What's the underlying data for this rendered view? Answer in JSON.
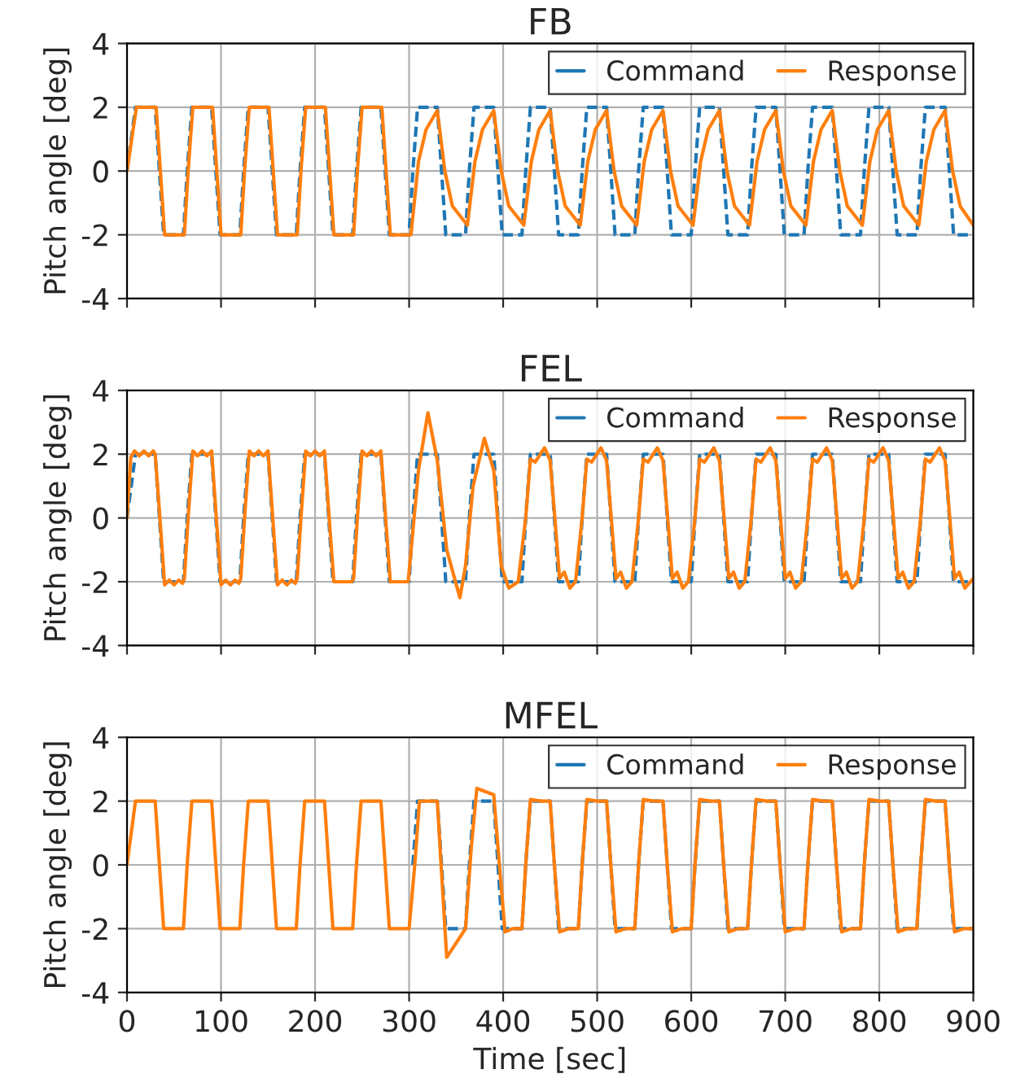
{
  "chart_data": [
    {
      "type": "line",
      "title": "FB",
      "ylabel": "Pitch angle [deg]",
      "xlim": [
        0,
        900
      ],
      "xticks": [
        0,
        100,
        200,
        300,
        400,
        500,
        600,
        700,
        800,
        900
      ],
      "ylim": [
        -4,
        4
      ],
      "yticks": [
        -4,
        -2,
        0,
        2,
        4
      ],
      "grid": true,
      "legend": "top right",
      "tick_labels": "y",
      "series": [
        {
          "name": "Command",
          "color": "#1f77b4",
          "line_style": "dashed",
          "x": [
            0,
            9,
            30,
            34.5,
            39,
            60,
            64,
            69,
            90,
            94.5,
            99,
            120,
            124,
            129,
            150,
            154.5,
            159,
            180,
            184,
            189,
            210,
            214.5,
            219,
            240,
            244,
            249,
            270,
            274.5,
            279,
            300,
            304,
            309,
            330,
            334.5,
            339,
            360,
            364,
            369,
            390,
            394.5,
            399,
            420,
            424,
            429,
            450,
            454.5,
            459,
            480,
            484,
            489,
            510,
            514.5,
            519,
            540,
            544,
            549,
            570,
            574.5,
            579,
            600,
            604,
            609,
            630,
            634.5,
            639,
            660,
            664,
            669,
            690,
            694.5,
            699,
            720,
            724,
            729,
            750,
            754.5,
            759,
            780,
            784,
            789,
            810,
            814.5,
            819,
            840,
            844,
            849,
            870,
            874.5,
            879,
            900
          ],
          "values": [
            0,
            2,
            2,
            0,
            -2,
            -2,
            0,
            2,
            2,
            0,
            -2,
            -2,
            0,
            2,
            2,
            0,
            -2,
            -2,
            0,
            2,
            2,
            0,
            -2,
            -2,
            0,
            2,
            2,
            0,
            -2,
            -2,
            0,
            2,
            2,
            0,
            -2,
            -2,
            0,
            2,
            2,
            0,
            -2,
            -2,
            0,
            2,
            2,
            0,
            -2,
            -2,
            0,
            2,
            2,
            0,
            -2,
            -2,
            0,
            2,
            2,
            0,
            -2,
            -2,
            0,
            2,
            2,
            0,
            -2,
            -2,
            0,
            2,
            2,
            0,
            -2,
            -2,
            0,
            2,
            2,
            0,
            -2,
            -2,
            0,
            2,
            2,
            0,
            -2,
            -2,
            0,
            2,
            2,
            0,
            -2,
            -2
          ]
        },
        {
          "name": "Response",
          "color": "#ff7f0e",
          "line_style": "solid",
          "x": [
            0,
            10,
            31,
            35.5,
            40,
            61,
            65,
            70,
            91,
            95.5,
            100,
            121,
            125,
            130,
            151,
            155.5,
            160,
            181,
            185,
            190,
            211,
            215.5,
            220,
            241,
            245,
            250,
            271,
            275.5,
            280,
            302,
            310,
            318,
            330,
            338,
            346,
            362,
            370,
            378,
            390,
            398,
            406,
            422,
            430,
            438,
            450,
            458,
            466,
            482,
            490,
            498,
            510,
            518,
            526,
            542,
            550,
            558,
            570,
            578,
            586,
            602,
            610,
            618,
            630,
            638,
            646,
            662,
            670,
            678,
            690,
            698,
            706,
            722,
            730,
            738,
            750,
            758,
            766,
            782,
            790,
            798,
            810,
            818,
            826,
            842,
            850,
            858,
            870,
            878,
            886,
            900
          ],
          "values": [
            0,
            2,
            2,
            0,
            -2,
            -2,
            0,
            2,
            2,
            0,
            -2,
            -2,
            0,
            2,
            2,
            0,
            -2,
            -2,
            0,
            2,
            2,
            0,
            -2,
            -2,
            0,
            2,
            2,
            0,
            -2,
            -2,
            0.3,
            1.3,
            1.9,
            0,
            -1.1,
            -1.7,
            0.3,
            1.3,
            1.9,
            0,
            -1.1,
            -1.7,
            0.3,
            1.3,
            1.9,
            0,
            -1.1,
            -1.7,
            0.3,
            1.3,
            1.9,
            0,
            -1.1,
            -1.7,
            0.3,
            1.3,
            1.9,
            0,
            -1.1,
            -1.7,
            0.3,
            1.3,
            1.9,
            0,
            -1.1,
            -1.7,
            0.3,
            1.3,
            1.9,
            0,
            -1.1,
            -1.7,
            0.3,
            1.3,
            1.9,
            0,
            -1.1,
            -1.7,
            0.3,
            1.3,
            1.9,
            0,
            -1.1,
            -1.7,
            0.3,
            1.3,
            1.9,
            0,
            -1.1,
            -1.7
          ]
        }
      ]
    },
    {
      "type": "line",
      "title": "FEL",
      "ylabel": "Pitch angle [deg]",
      "xlim": [
        0,
        900
      ],
      "xticks": [
        0,
        100,
        200,
        300,
        400,
        500,
        600,
        700,
        800,
        900
      ],
      "ylim": [
        -4,
        4
      ],
      "yticks": [
        -4,
        -2,
        0,
        2,
        4
      ],
      "grid": true,
      "legend": "top right",
      "tick_labels": "y",
      "series": [
        {
          "name": "Command",
          "color": "#1f77b4",
          "line_style": "dashed",
          "x": [
            0,
            9,
            30,
            34.5,
            39,
            60,
            64,
            69,
            90,
            94.5,
            99,
            120,
            124,
            129,
            150,
            154.5,
            159,
            180,
            184,
            189,
            210,
            214.5,
            219,
            240,
            244,
            249,
            270,
            274.5,
            279,
            300,
            304,
            309,
            330,
            334.5,
            339,
            360,
            364,
            369,
            390,
            394.5,
            399,
            420,
            424,
            429,
            450,
            454.5,
            459,
            480,
            484,
            489,
            510,
            514.5,
            519,
            540,
            544,
            549,
            570,
            574.5,
            579,
            600,
            604,
            609,
            630,
            634.5,
            639,
            660,
            664,
            669,
            690,
            694.5,
            699,
            720,
            724,
            729,
            750,
            754.5,
            759,
            780,
            784,
            789,
            810,
            814.5,
            819,
            840,
            844,
            849,
            870,
            874.5,
            879,
            900
          ],
          "values": [
            0,
            2,
            2,
            0,
            -2,
            -2,
            0,
            2,
            2,
            0,
            -2,
            -2,
            0,
            2,
            2,
            0,
            -2,
            -2,
            0,
            2,
            2,
            0,
            -2,
            -2,
            0,
            2,
            2,
            0,
            -2,
            -2,
            0,
            2,
            2,
            0,
            -2,
            -2,
            0,
            2,
            2,
            0,
            -2,
            -2,
            0,
            2,
            2,
            0,
            -2,
            -2,
            0,
            2,
            2,
            0,
            -2,
            -2,
            0,
            2,
            2,
            0,
            -2,
            -2,
            0,
            2,
            2,
            0,
            -2,
            -2,
            0,
            2,
            2,
            0,
            -2,
            -2,
            0,
            2,
            2,
            0,
            -2,
            -2,
            0,
            2,
            2,
            0,
            -2,
            -2,
            0,
            2,
            2,
            0,
            -2,
            -2
          ]
        },
        {
          "name": "Response",
          "color": "#ff7f0e",
          "line_style": "solid",
          "x": [
            0,
            4,
            8,
            13,
            18,
            23,
            28,
            30,
            35,
            40,
            45,
            50,
            55,
            59,
            61,
            65,
            70,
            75,
            80,
            85,
            90,
            95,
            100,
            105,
            110,
            115,
            119,
            121,
            125,
            130,
            135,
            140,
            145,
            150,
            155,
            160,
            165,
            170,
            175,
            179,
            181,
            185,
            190,
            195,
            200,
            205,
            210,
            215,
            220,
            239,
            241,
            245,
            250,
            255,
            260,
            265,
            270,
            275,
            280,
            299,
            310,
            320,
            330,
            340,
            354,
            360,
            368,
            380,
            390,
            398,
            406,
            416,
            424,
            429,
            434,
            444,
            450,
            455,
            460,
            465,
            471,
            477,
            484,
            489,
            494,
            504,
            510,
            515,
            520,
            525,
            531,
            537,
            544,
            549,
            554,
            564,
            570,
            575,
            580,
            585,
            591,
            597,
            604,
            609,
            614,
            624,
            630,
            635,
            640,
            645,
            651,
            657,
            664,
            669,
            674,
            684,
            690,
            695,
            700,
            705,
            711,
            717,
            724,
            729,
            734,
            744,
            750,
            755,
            760,
            765,
            771,
            777,
            784,
            789,
            794,
            804,
            810,
            815,
            820,
            825,
            831,
            837,
            844,
            849,
            854,
            864,
            870,
            875,
            880,
            885,
            891,
            897,
            900
          ],
          "values": [
            0,
            1.9,
            2.1,
            1.95,
            2.1,
            1.95,
            2.1,
            2,
            0,
            -2.1,
            -1.95,
            -2.1,
            -1.95,
            -2.05,
            -1.9,
            0,
            2.1,
            1.95,
            2.1,
            1.95,
            2.1,
            0,
            -2.1,
            -1.95,
            -2.1,
            -1.95,
            -2.05,
            -1.9,
            0,
            2.1,
            1.95,
            2.1,
            1.95,
            2.1,
            0,
            -2.1,
            -1.95,
            -2.1,
            -1.95,
            -2.05,
            -1.9,
            0,
            2.1,
            1.95,
            2.1,
            1.95,
            2.1,
            0,
            -2,
            -2,
            -1.9,
            0,
            2.1,
            1.95,
            2.1,
            1.95,
            2.1,
            0,
            -2,
            -2,
            1.5,
            3.3,
            1.8,
            -1.0,
            -2.5,
            -1.5,
            1,
            2.5,
            1.5,
            -1.5,
            -2.2,
            -2,
            0,
            1.85,
            1.75,
            2.2,
            1.8,
            0,
            -1.9,
            -1.7,
            -2.2,
            -2,
            0,
            1.85,
            1.75,
            2.2,
            1.8,
            0,
            -1.9,
            -1.7,
            -2.2,
            -2,
            0,
            1.85,
            1.75,
            2.2,
            1.8,
            0,
            -1.9,
            -1.7,
            -2.2,
            -2,
            0,
            1.85,
            1.75,
            2.2,
            1.8,
            0,
            -1.9,
            -1.7,
            -2.2,
            -2,
            0,
            1.85,
            1.75,
            2.2,
            1.8,
            0,
            -1.9,
            -1.7,
            -2.2,
            -2,
            0,
            1.85,
            1.75,
            2.2,
            1.8,
            0,
            -1.9,
            -1.7,
            -2.2,
            -2,
            0,
            1.85,
            1.75,
            2.2,
            1.8,
            0,
            -1.9,
            -1.7,
            -2.2,
            -2,
            0,
            1.85,
            1.75,
            2.2,
            1.8,
            0,
            -1.9,
            -1.7,
            -2.2,
            -2,
            -1.9
          ]
        }
      ]
    },
    {
      "type": "line",
      "title": "MFEL",
      "xlabel": "Time [sec]",
      "ylabel": "Pitch angle [deg]",
      "xlim": [
        0,
        900
      ],
      "xticks": [
        0,
        100,
        200,
        300,
        400,
        500,
        600,
        700,
        800,
        900
      ],
      "ylim": [
        -4,
        4
      ],
      "yticks": [
        -4,
        -2,
        0,
        2,
        4
      ],
      "grid": true,
      "legend": "top right",
      "series": [
        {
          "name": "Command",
          "color": "#1f77b4",
          "line_style": "dashed",
          "x": [
            304,
            309,
            330,
            334.5,
            339,
            360,
            364,
            369,
            390,
            394.5,
            399,
            420,
            424,
            429,
            450,
            454.5,
            459,
            480,
            484,
            489,
            510,
            514.5,
            519,
            540,
            544,
            549,
            570,
            574.5,
            579,
            600,
            604,
            609,
            630,
            634.5,
            639,
            660,
            664,
            669,
            690,
            694.5,
            699,
            720,
            724,
            729,
            750,
            754.5,
            759,
            780,
            784,
            789,
            810,
            814.5,
            819,
            840,
            844,
            849,
            870,
            874.5,
            879,
            900
          ],
          "values": [
            0,
            2,
            2,
            0,
            -2,
            -2,
            0,
            2,
            2,
            0,
            -2,
            -2,
            0,
            2,
            2,
            0,
            -2,
            -2,
            0,
            2,
            2,
            0,
            -2,
            -2,
            0,
            2,
            2,
            0,
            -2,
            -2,
            0,
            2,
            2,
            0,
            -2,
            -2,
            0,
            2,
            2,
            0,
            -2,
            -2,
            0,
            2,
            2,
            0,
            -2,
            -2,
            0,
            2,
            2,
            0,
            -2,
            -2,
            0,
            2,
            2,
            0,
            -2,
            -2
          ]
        },
        {
          "name": "Response",
          "color": "#ff7f0e",
          "line_style": "solid",
          "x": [
            0,
            9,
            30,
            34.5,
            39,
            60,
            64,
            69,
            90,
            94.5,
            99,
            120,
            124,
            129,
            150,
            154.5,
            159,
            180,
            184,
            189,
            210,
            214.5,
            219,
            240,
            244,
            249,
            270,
            274.5,
            279,
            300,
            306,
            311,
            330,
            334,
            340,
            360,
            366,
            372,
            390,
            396,
            402,
            410,
            420,
            424,
            429,
            440,
            450,
            454.5,
            460,
            470,
            480,
            484,
            489,
            500,
            510,
            514.5,
            520,
            530,
            540,
            544,
            549,
            560,
            570,
            574.5,
            580,
            590,
            600,
            604,
            609,
            620,
            630,
            634.5,
            640,
            650,
            660,
            664,
            669,
            680,
            690,
            694.5,
            700,
            710,
            720,
            724,
            729,
            740,
            750,
            754.5,
            760,
            770,
            780,
            784,
            789,
            800,
            810,
            814.5,
            820,
            830,
            840,
            844,
            849,
            860,
            870,
            874.5,
            880,
            890,
            900
          ],
          "values": [
            0,
            2,
            2,
            0,
            -2,
            -2,
            0,
            2,
            2,
            0,
            -2,
            -2,
            0,
            2,
            2,
            0,
            -2,
            -2,
            0,
            2,
            2,
            0,
            -2,
            -2,
            0,
            2,
            2,
            0,
            -2,
            -2,
            0,
            2,
            2,
            0,
            -2.9,
            -2,
            0.5,
            2.4,
            2.2,
            0,
            -2.1,
            -2,
            -2,
            0,
            2.05,
            2,
            2,
            0,
            -2.1,
            -2,
            -2,
            0,
            2.05,
            2,
            2,
            0,
            -2.1,
            -2,
            -2,
            0,
            2.05,
            2,
            2,
            0,
            -2.1,
            -2,
            -2,
            0,
            2.05,
            2,
            2,
            0,
            -2.1,
            -2,
            -2,
            0,
            2.05,
            2,
            2,
            0,
            -2.1,
            -2,
            -2,
            0,
            2.05,
            2,
            2,
            0,
            -2.1,
            -2,
            -2,
            0,
            2.05,
            2,
            2,
            0,
            -2.1,
            -2,
            -2,
            0,
            2.05,
            2,
            2,
            0,
            -2.1,
            -2,
            -2
          ]
        }
      ]
    }
  ]
}
